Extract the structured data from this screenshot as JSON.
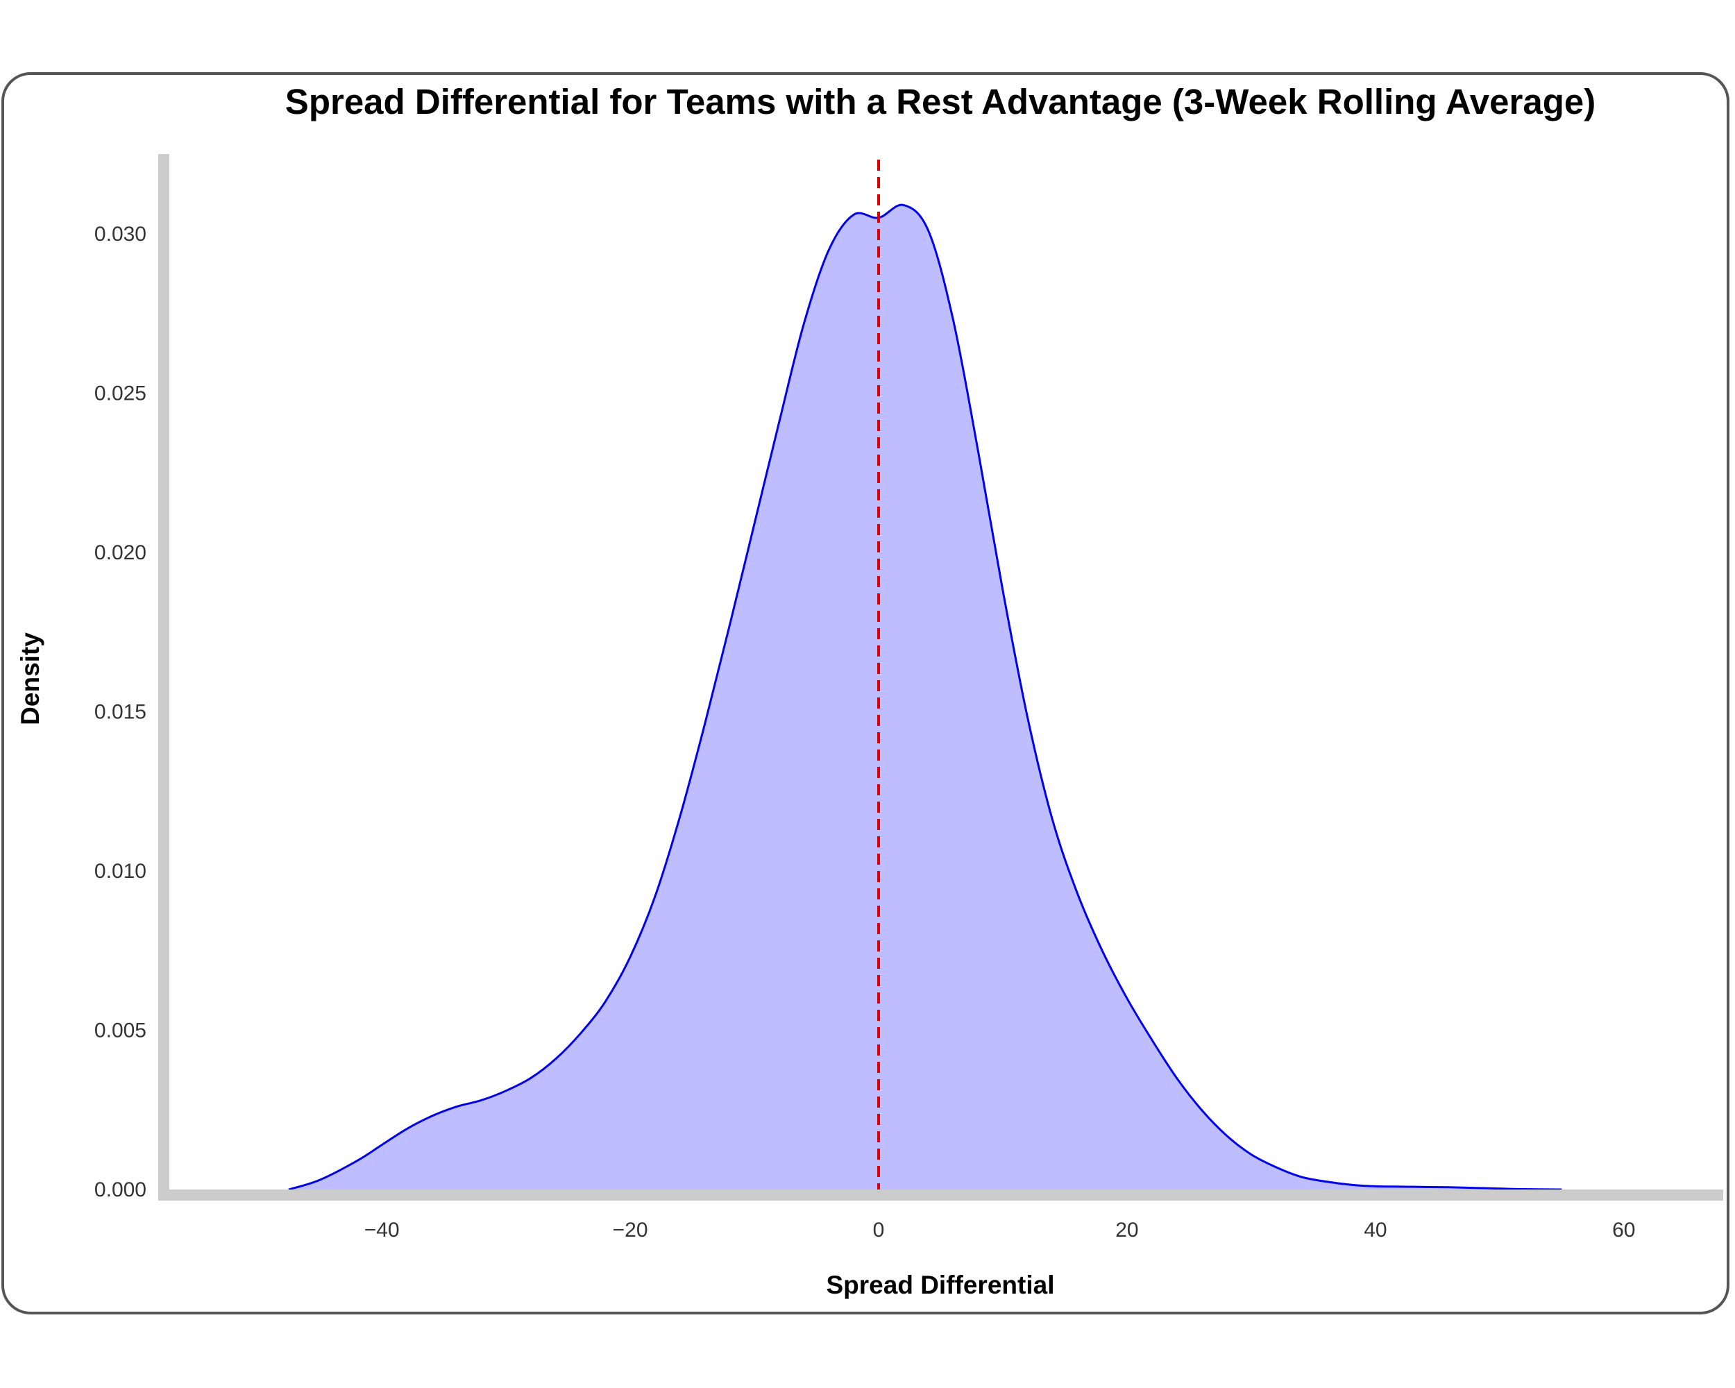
{
  "chart_data": {
    "type": "area",
    "title": "Spread Differential for Teams with a Rest Advantage (3-Week Rolling Average)",
    "xlabel": "Spread Differential",
    "ylabel": "Density",
    "xlim": [
      -58,
      68
    ],
    "ylim": [
      0,
      0.0325
    ],
    "x_ticks": [
      -40,
      -20,
      0,
      20,
      40,
      60
    ],
    "x_tick_labels": [
      "−40",
      "−20",
      "0",
      "20",
      "40",
      "60"
    ],
    "y_ticks": [
      0,
      0.005,
      0.01,
      0.015,
      0.02,
      0.025,
      0.03
    ],
    "y_tick_labels": [
      "0.000",
      "0.005",
      "0.010",
      "0.015",
      "0.020",
      "0.025",
      "0.030"
    ],
    "grid": false,
    "series": [
      {
        "line_color": "#0000ee",
        "fill_color": "#bdbdff",
        "x": [
          -47.5,
          -45,
          -42,
          -40,
          -38,
          -36,
          -34,
          -32,
          -30,
          -28,
          -26,
          -24,
          -22,
          -20,
          -18,
          -16,
          -14,
          -12,
          -10,
          -8,
          -6,
          -4,
          -2,
          0,
          2,
          4,
          6,
          8,
          10,
          12,
          14,
          16,
          18,
          20,
          22,
          24,
          26,
          28,
          30,
          32,
          34,
          36,
          38,
          40,
          42,
          44,
          46,
          48,
          50,
          52,
          55
        ],
        "y": [
          0.0,
          0.0003,
          0.0009,
          0.0014,
          0.0019,
          0.0023,
          0.0026,
          0.0028,
          0.0031,
          0.0035,
          0.0041,
          0.0049,
          0.0059,
          0.0073,
          0.0092,
          0.0117,
          0.0146,
          0.0177,
          0.0209,
          0.0241,
          0.0272,
          0.0295,
          0.0306,
          0.0305,
          0.0309,
          0.0301,
          0.0273,
          0.0232,
          0.0188,
          0.0148,
          0.0116,
          0.0093,
          0.0075,
          0.006,
          0.0047,
          0.0035,
          0.0025,
          0.0017,
          0.0011,
          0.0007,
          0.0004,
          0.00025,
          0.00015,
          0.0001,
          9e-05,
          8e-05,
          7e-05,
          5e-05,
          3e-05,
          1e-05,
          0.0
        ]
      }
    ],
    "reference_line": {
      "x": 0,
      "color": "#dd0000",
      "style": "dashed"
    }
  }
}
